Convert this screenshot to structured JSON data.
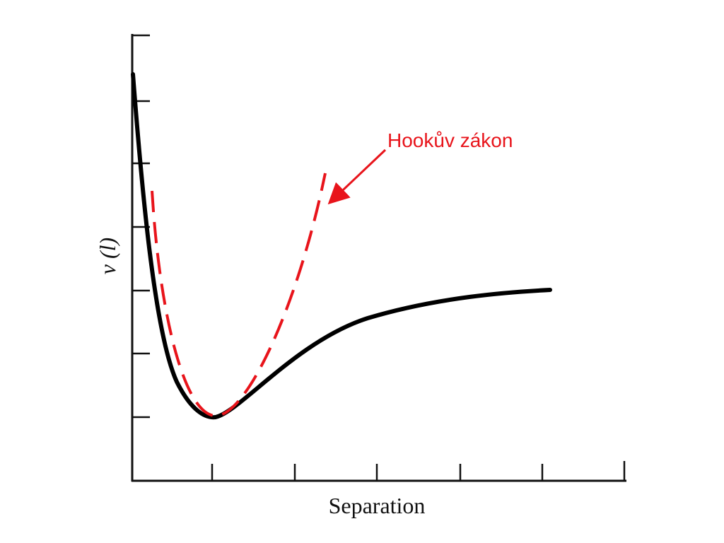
{
  "annotation": "Hookův zákon",
  "y_label": "v (l)",
  "x_label": "Separation"
}
